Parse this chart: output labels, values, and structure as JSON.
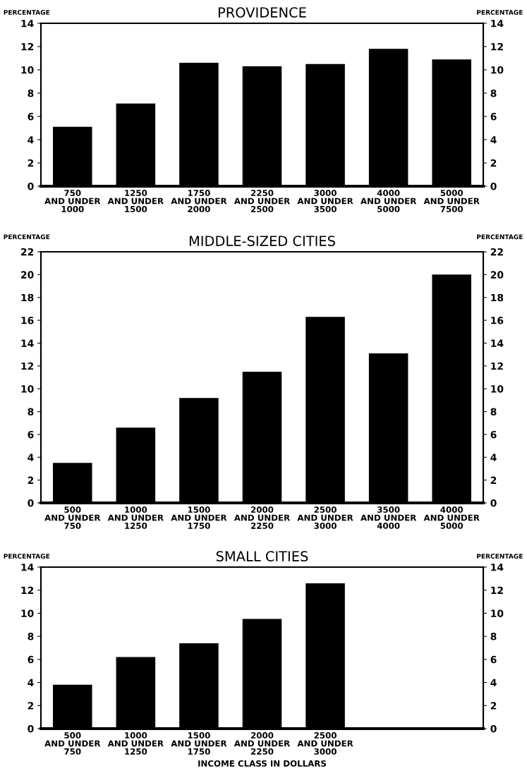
{
  "chart_data": [
    {
      "type": "bar",
      "title": "PROVIDENCE",
      "ylabel": "PERCENTAGE",
      "y2label": "PERCENTAGE",
      "categories": [
        "750\nAND UNDER\n1000",
        "1250\nAND UNDER\n1500",
        "1750\nAND UNDER\n2000",
        "2250\nAND UNDER\n2500",
        "3000\nAND UNDER\n3500",
        "4000\nAND UNDER\n5000",
        "5000\nAND UNDER\n7500"
      ],
      "values": [
        5.1,
        7.1,
        10.6,
        10.3,
        10.5,
        11.8,
        10.9
      ],
      "color": "#000000",
      "ylim": [
        0,
        14
      ],
      "yticks": [
        0,
        2,
        4,
        6,
        8,
        10,
        12,
        14
      ],
      "y2lim": [
        0,
        14
      ],
      "y2ticks": [
        0,
        2,
        4,
        6,
        8,
        10,
        12,
        14
      ],
      "grid": false,
      "legend": false
    },
    {
      "type": "bar",
      "title": "MIDDLE-SIZED CITIES",
      "ylabel": "PERCENTAGE",
      "y2label": "PERCENTAGE",
      "categories": [
        "500\nAND UNDER\n750",
        "1000\nAND UNDER\n1250",
        "1500\nAND UNDER\n1750",
        "2000\nAND UNDER\n2250",
        "2500\nAND UNDER\n3000",
        "3500\nAND UNDER\n4000",
        "4000\nAND UNDER\n5000"
      ],
      "values": [
        3.5,
        6.6,
        9.2,
        11.5,
        16.3,
        13.1,
        20.0
      ],
      "color": "#000000",
      "ylim": [
        0,
        22
      ],
      "yticks": [
        0,
        2,
        4,
        6,
        8,
        10,
        12,
        14,
        16,
        18,
        20,
        22
      ],
      "y2lim": [
        0,
        22
      ],
      "y2ticks": [
        0,
        2,
        4,
        6,
        8,
        10,
        12,
        14,
        16,
        18,
        20,
        22
      ],
      "grid": false,
      "legend": false
    },
    {
      "type": "bar",
      "title": "SMALL CITIES",
      "ylabel": "PERCENTAGE",
      "y2label": "PERCENTAGE",
      "xlabel": "INCOME CLASS IN DOLLARS",
      "categories": [
        "500\nAND UNDER\n750",
        "1000\nAND UNDER\n1250",
        "1500\nAND UNDER\n1750",
        "2000\nAND UNDER\n2250",
        "2500\nAND UNDER\n3000",
        null,
        null
      ],
      "values": [
        3.8,
        6.2,
        7.4,
        9.5,
        12.6,
        null,
        null
      ],
      "color": "#000000",
      "ylim": [
        0,
        14
      ],
      "yticks": [
        0,
        2,
        4,
        6,
        8,
        10,
        12,
        14
      ],
      "y2lim": [
        0,
        14
      ],
      "y2ticks": [
        0,
        2,
        4,
        6,
        8,
        10,
        12,
        14
      ],
      "grid": false,
      "legend": false
    }
  ]
}
